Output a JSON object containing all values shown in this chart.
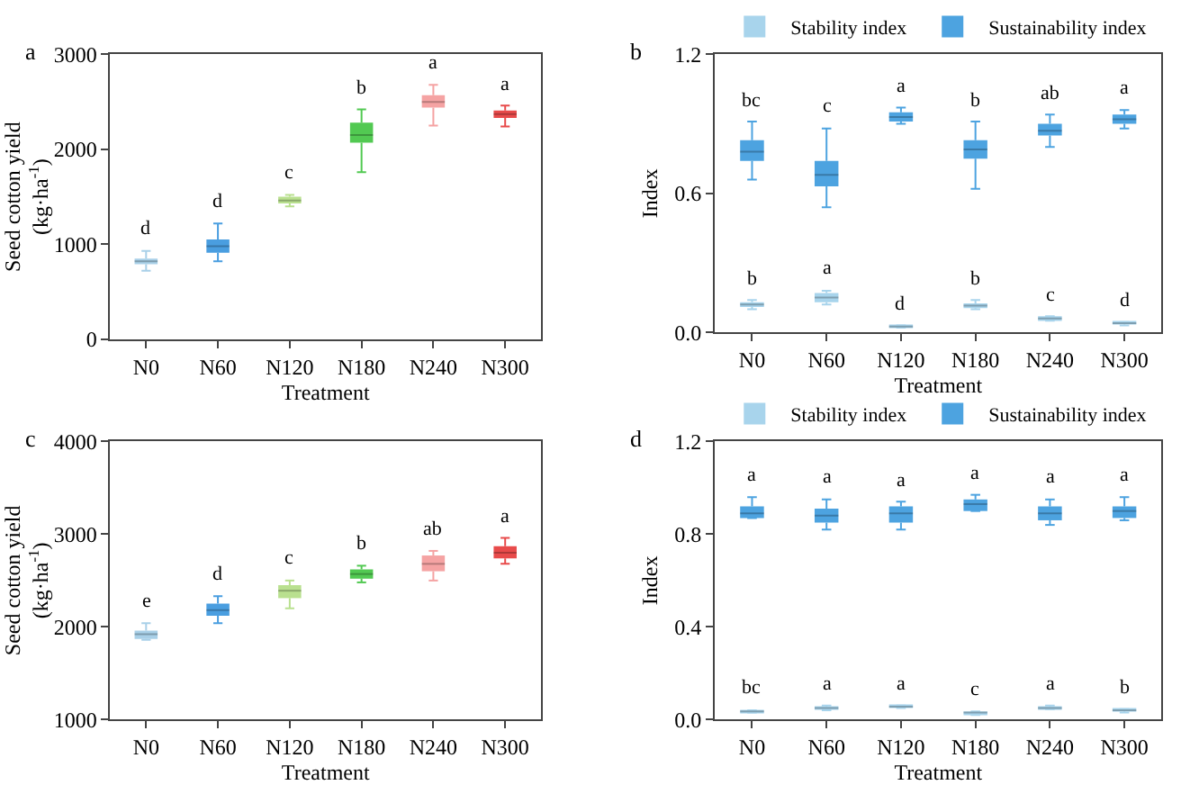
{
  "chart_data": [
    {
      "type": "box",
      "title": "a",
      "xlabel": "Treatment",
      "ylabel": "Seed cotton yield\n(kg·ha$^{-1}$)",
      "categories": [
        "N0",
        "N60",
        "N120",
        "N180",
        "N240",
        "N300"
      ],
      "ylim": [
        0,
        3000
      ],
      "yticks": [
        0,
        1000,
        2000,
        3000
      ],
      "legend": false,
      "colors": [
        "#a9d0e8",
        "#4a9ee0",
        "#b9e08f",
        "#52c952",
        "#f5a3a3",
        "#e84b4b"
      ],
      "boxes": [
        {
          "low": 720,
          "q1": 790,
          "median": 820,
          "q3": 850,
          "high": 930
        },
        {
          "low": 820,
          "q1": 910,
          "median": 980,
          "q3": 1050,
          "high": 1220
        },
        {
          "low": 1400,
          "q1": 1430,
          "median": 1460,
          "q3": 1500,
          "high": 1520
        },
        {
          "low": 1760,
          "q1": 2070,
          "median": 2150,
          "q3": 2280,
          "high": 2420
        },
        {
          "low": 2250,
          "q1": 2440,
          "median": 2500,
          "q3": 2570,
          "high": 2680
        },
        {
          "low": 2240,
          "q1": 2330,
          "median": 2370,
          "q3": 2410,
          "high": 2460
        }
      ],
      "annotations": [
        "d",
        "d",
        "c",
        "b",
        "a",
        "a"
      ]
    },
    {
      "type": "box",
      "title": "b",
      "xlabel": "Treatment",
      "ylabel": "Index",
      "categories": [
        "N0",
        "N60",
        "N120",
        "N180",
        "N240",
        "N300"
      ],
      "ylim": [
        0,
        1.2
      ],
      "yticks": [
        {
          "value": 0,
          "label": "0.0"
        },
        0.6,
        1.2
      ],
      "legend": "top",
      "series": [
        {
          "name": "Stability index",
          "color": "#a8d4ec",
          "boxes": [
            {
              "low": 0.1,
              "q1": 0.11,
              "median": 0.12,
              "q3": 0.13,
              "high": 0.14
            },
            {
              "low": 0.12,
              "q1": 0.13,
              "median": 0.15,
              "q3": 0.17,
              "high": 0.18
            },
            {
              "low": 0.02,
              "q1": 0.02,
              "median": 0.025,
              "q3": 0.03,
              "high": 0.03
            },
            {
              "low": 0.1,
              "q1": 0.105,
              "median": 0.115,
              "q3": 0.125,
              "high": 0.14
            },
            {
              "low": 0.05,
              "q1": 0.055,
              "median": 0.06,
              "q3": 0.07,
              "high": 0.07
            },
            {
              "low": 0.03,
              "q1": 0.035,
              "median": 0.04,
              "q3": 0.045,
              "high": 0.045
            }
          ]
        },
        {
          "name": "Sustainability index",
          "color": "#4da3e0",
          "boxes": [
            {
              "low": 0.66,
              "q1": 0.74,
              "median": 0.78,
              "q3": 0.83,
              "high": 0.91
            },
            {
              "low": 0.54,
              "q1": 0.63,
              "median": 0.68,
              "q3": 0.74,
              "high": 0.88
            },
            {
              "low": 0.9,
              "q1": 0.91,
              "median": 0.93,
              "q3": 0.95,
              "high": 0.97
            },
            {
              "low": 0.62,
              "q1": 0.75,
              "median": 0.79,
              "q3": 0.83,
              "high": 0.91
            },
            {
              "low": 0.8,
              "q1": 0.85,
              "median": 0.87,
              "q3": 0.9,
              "high": 0.94
            },
            {
              "low": 0.88,
              "q1": 0.9,
              "median": 0.92,
              "q3": 0.94,
              "high": 0.96
            }
          ]
        }
      ],
      "annotations": [
        "b",
        "a",
        "d",
        "b",
        "c",
        "d",
        "bc",
        "c",
        "a",
        "b",
        "ab",
        "a"
      ]
    },
    {
      "type": "box",
      "title": "c",
      "xlabel": "Treatment",
      "ylabel": "Seed cotton yield\n(kg·ha$^{-1}$)",
      "categories": [
        "N0",
        "N60",
        "N120",
        "N180",
        "N240",
        "N300"
      ],
      "ylim": [
        1000,
        4000
      ],
      "yticks": [
        1000,
        2000,
        3000,
        4000
      ],
      "legend": false,
      "colors": [
        "#a9d0e8",
        "#4a9ee0",
        "#b9e08f",
        "#52c952",
        "#f5a3a3",
        "#e84b4b"
      ],
      "boxes": [
        {
          "low": 1860,
          "q1": 1870,
          "median": 1920,
          "q3": 1960,
          "high": 2040
        },
        {
          "low": 2040,
          "q1": 2120,
          "median": 2180,
          "q3": 2250,
          "high": 2330
        },
        {
          "low": 2200,
          "q1": 2310,
          "median": 2390,
          "q3": 2450,
          "high": 2500
        },
        {
          "low": 2480,
          "q1": 2520,
          "median": 2570,
          "q3": 2620,
          "high": 2660
        },
        {
          "low": 2500,
          "q1": 2600,
          "median": 2680,
          "q3": 2770,
          "high": 2820
        },
        {
          "low": 2680,
          "q1": 2740,
          "median": 2800,
          "q3": 2870,
          "high": 2960
        }
      ],
      "annotations": [
        "e",
        "d",
        "c",
        "b",
        "ab",
        "a"
      ]
    },
    {
      "type": "box",
      "title": "d",
      "xlabel": "Treatment",
      "ylabel": "Index",
      "categories": [
        "N0",
        "N60",
        "N120",
        "N180",
        "N240",
        "N300"
      ],
      "ylim": [
        0,
        1.2
      ],
      "yticks": [
        {
          "value": 0,
          "label": "0.0"
        },
        0.4,
        0.8,
        1.2
      ],
      "legend": "top",
      "series": [
        {
          "name": "Stability index",
          "color": "#a8d4ec",
          "boxes": [
            {
              "low": 0.03,
              "q1": 0.03,
              "median": 0.035,
              "q3": 0.04,
              "high": 0.04
            },
            {
              "low": 0.04,
              "q1": 0.045,
              "median": 0.05,
              "q3": 0.055,
              "high": 0.06
            },
            {
              "low": 0.05,
              "q1": 0.05,
              "median": 0.055,
              "q3": 0.06,
              "high": 0.06
            },
            {
              "low": 0.02,
              "q1": 0.025,
              "median": 0.03,
              "q3": 0.035,
              "high": 0.035
            },
            {
              "low": 0.045,
              "q1": 0.045,
              "median": 0.05,
              "q3": 0.055,
              "high": 0.06
            },
            {
              "low": 0.03,
              "q1": 0.035,
              "median": 0.04,
              "q3": 0.045,
              "high": 0.045
            }
          ]
        },
        {
          "name": "Sustainability index",
          "color": "#4da3e0",
          "boxes": [
            {
              "low": 0.87,
              "q1": 0.87,
              "median": 0.89,
              "q3": 0.92,
              "high": 0.96
            },
            {
              "low": 0.82,
              "q1": 0.85,
              "median": 0.88,
              "q3": 0.91,
              "high": 0.95
            },
            {
              "low": 0.82,
              "q1": 0.85,
              "median": 0.89,
              "q3": 0.92,
              "high": 0.94
            },
            {
              "low": 0.9,
              "q1": 0.9,
              "median": 0.93,
              "q3": 0.95,
              "high": 0.97
            },
            {
              "low": 0.84,
              "q1": 0.86,
              "median": 0.89,
              "q3": 0.92,
              "high": 0.95
            },
            {
              "low": 0.86,
              "q1": 0.87,
              "median": 0.9,
              "q3": 0.92,
              "high": 0.96
            }
          ]
        }
      ],
      "annotations": [
        "bc",
        "a",
        "a",
        "c",
        "a",
        "b",
        "a",
        "a",
        "a",
        "a",
        "a",
        "a"
      ]
    }
  ]
}
